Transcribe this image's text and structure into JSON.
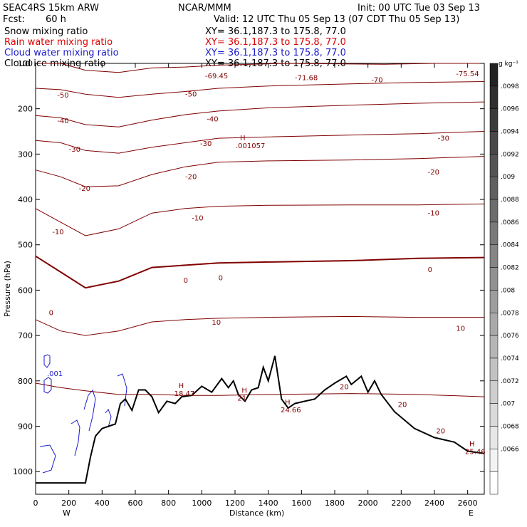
{
  "header": {
    "model": "SEAC4RS 15km ARW",
    "center": "NCAR/MMM",
    "init": "Init: 00 UTC Tue 03 Sep 13",
    "fcst_label": "Fcst:",
    "fcst_value": "60 h",
    "valid": "Valid: 12 UTC Thu 05 Sep 13 (07 CDT Thu 05 Sep 13)"
  },
  "fields": [
    {
      "name": "Snow mixing ratio",
      "xy": "XY=  36.1,187.3 to 175.8, 77.0",
      "color": "#000000"
    },
    {
      "name": "Rain water mixing ratio",
      "xy": "XY=  36.1,187.3 to 175.8, 77.0",
      "color": "#dd0000"
    },
    {
      "name": "Cloud water mixing ratio",
      "xy": "XY=  36.1,187.3 to 175.8, 77.0",
      "color": "#1a1acc"
    },
    {
      "name": "Cloud ice mixing ratio",
      "xy": "XY=  36.1,187.3 to 175.8, 77.0",
      "color": "#000000"
    }
  ],
  "chart_data": {
    "type": "contour-cross-section",
    "xlabel": "Distance (km)",
    "ylabel": "Pressure (hPa)",
    "xlim": [
      0,
      2700
    ],
    "ylim": [
      1050,
      100
    ],
    "x_ticks": [
      "0",
      "200",
      "400",
      "600",
      "800",
      "1000",
      "1200",
      "1400",
      "1600",
      "1800",
      "2000",
      "2200",
      "2400",
      "2600"
    ],
    "y_ticks": [
      "100",
      "200",
      "300",
      "400",
      "500",
      "600",
      "700",
      "800",
      "900",
      "1000"
    ],
    "west_label": "W",
    "east_label": "E",
    "temperature_contours": [
      {
        "level": -60,
        "points": [
          [
            0,
            100
          ],
          [
            150,
            100
          ],
          [
            300,
            115
          ],
          [
            500,
            120
          ],
          [
            700,
            110
          ],
          [
            900,
            108
          ],
          [
            1100,
            104
          ],
          [
            1500,
            100
          ],
          [
            2100,
            102
          ],
          [
            2400,
            100
          ],
          [
            2700,
            100
          ]
        ]
      },
      {
        "level": -50,
        "points": [
          [
            0,
            155
          ],
          [
            150,
            158
          ],
          [
            300,
            168
          ],
          [
            500,
            175
          ],
          [
            700,
            168
          ],
          [
            900,
            162
          ],
          [
            1100,
            155
          ],
          [
            1400,
            150
          ],
          [
            1900,
            145
          ],
          [
            2300,
            142
          ],
          [
            2700,
            140
          ]
        ]
      },
      {
        "level": -40,
        "points": [
          [
            0,
            215
          ],
          [
            150,
            220
          ],
          [
            300,
            235
          ],
          [
            500,
            240
          ],
          [
            700,
            225
          ],
          [
            900,
            213
          ],
          [
            1100,
            205
          ],
          [
            1400,
            198
          ],
          [
            1900,
            192
          ],
          [
            2300,
            188
          ],
          [
            2700,
            185
          ]
        ]
      },
      {
        "level": -30,
        "points": [
          [
            0,
            270
          ],
          [
            150,
            275
          ],
          [
            300,
            292
          ],
          [
            500,
            298
          ],
          [
            700,
            285
          ],
          [
            900,
            275
          ],
          [
            1100,
            265
          ],
          [
            1400,
            262
          ],
          [
            1900,
            258
          ],
          [
            2300,
            255
          ],
          [
            2700,
            250
          ]
        ]
      },
      {
        "level": -20,
        "points": [
          [
            0,
            335
          ],
          [
            150,
            350
          ],
          [
            300,
            372
          ],
          [
            500,
            370
          ],
          [
            700,
            345
          ],
          [
            900,
            328
          ],
          [
            1100,
            318
          ],
          [
            1400,
            315
          ],
          [
            1900,
            313
          ],
          [
            2300,
            310
          ],
          [
            2700,
            305
          ]
        ]
      },
      {
        "level": -10,
        "points": [
          [
            0,
            420
          ],
          [
            150,
            450
          ],
          [
            300,
            480
          ],
          [
            500,
            465
          ],
          [
            700,
            430
          ],
          [
            900,
            420
          ],
          [
            1100,
            415
          ],
          [
            1400,
            413
          ],
          [
            1900,
            412
          ],
          [
            2300,
            412
          ],
          [
            2700,
            410
          ]
        ]
      },
      {
        "level": 0,
        "points": [
          [
            0,
            525
          ],
          [
            150,
            560
          ],
          [
            300,
            595
          ],
          [
            500,
            580
          ],
          [
            700,
            550
          ],
          [
            900,
            545
          ],
          [
            1100,
            540
          ],
          [
            1400,
            538
          ],
          [
            1900,
            535
          ],
          [
            2300,
            530
          ],
          [
            2700,
            528
          ]
        ]
      },
      {
        "level": 10,
        "points": [
          [
            0,
            665
          ],
          [
            150,
            690
          ],
          [
            300,
            700
          ],
          [
            500,
            690
          ],
          [
            700,
            670
          ],
          [
            900,
            665
          ],
          [
            1100,
            662
          ],
          [
            1400,
            660
          ],
          [
            1900,
            658
          ],
          [
            2300,
            660
          ],
          [
            2700,
            660
          ]
        ]
      },
      {
        "level": 20,
        "points": [
          [
            0,
            805
          ],
          [
            150,
            815
          ],
          [
            300,
            822
          ],
          [
            500,
            830
          ],
          [
            700,
            830
          ],
          [
            900,
            832
          ],
          [
            1100,
            832
          ],
          [
            1400,
            830
          ],
          [
            1900,
            828
          ],
          [
            2300,
            830
          ],
          [
            2700,
            835
          ]
        ]
      }
    ],
    "temperature_labels": [
      {
        "text": "-69.45",
        "x": 1020,
        "y": 133
      },
      {
        "text": "-71.68",
        "x": 1560,
        "y": 137
      },
      {
        "text": "-70",
        "x": 2020,
        "y": 142
      },
      {
        "text": "-75.54",
        "x": 2530,
        "y": 128
      },
      {
        "text": "-50",
        "x": 130,
        "y": 175
      },
      {
        "text": "-50",
        "x": 900,
        "y": 173
      },
      {
        "text": "-40",
        "x": 130,
        "y": 232
      },
      {
        "text": "-40",
        "x": 1030,
        "y": 228
      },
      {
        "text": "-30",
        "x": 200,
        "y": 295
      },
      {
        "text": "-30",
        "x": 990,
        "y": 282
      },
      {
        "text": "-30",
        "x": 2420,
        "y": 270
      },
      {
        "text": "-20",
        "x": 260,
        "y": 381
      },
      {
        "text": "-20",
        "x": 900,
        "y": 355
      },
      {
        "text": "-20",
        "x": 2360,
        "y": 345
      },
      {
        "text": "-10",
        "x": 100,
        "y": 477
      },
      {
        "text": "-10",
        "x": 940,
        "y": 446
      },
      {
        "text": "-10",
        "x": 2360,
        "y": 435
      },
      {
        "text": "0",
        "x": 80,
        "y": 655
      },
      {
        "text": "0",
        "x": 890,
        "y": 584
      },
      {
        "text": "0",
        "x": 1100,
        "y": 578
      },
      {
        "text": "0",
        "x": 2360,
        "y": 560
      },
      {
        "text": "10",
        "x": 1060,
        "y": 676
      },
      {
        "text": "10",
        "x": 2530,
        "y": 690
      },
      {
        "text": "20",
        "x": 1830,
        "y": 818
      },
      {
        "text": "20",
        "x": 2180,
        "y": 858
      },
      {
        "text": "20",
        "x": 2410,
        "y": 916
      }
    ],
    "highs": [
      {
        "text": "H",
        "value": ".001057",
        "x": 1230,
        "y": 285
      },
      {
        "text": "H",
        "value": "18.47",
        "x": 860,
        "y": 832
      },
      {
        "text": "H",
        "value": "21",
        "x": 1240,
        "y": 842
      },
      {
        "text": "H",
        "value": "24.66",
        "x": 1500,
        "y": 868
      },
      {
        "text": "H",
        "value": "25.46",
        "x": 2610,
        "y": 960
      }
    ],
    "terrain": {
      "name": "surface",
      "points": [
        [
          0,
          1025
        ],
        [
          300,
          1025
        ],
        [
          330,
          968
        ],
        [
          360,
          922
        ],
        [
          400,
          905
        ],
        [
          440,
          900
        ],
        [
          480,
          895
        ],
        [
          510,
          850
        ],
        [
          540,
          840
        ],
        [
          580,
          865
        ],
        [
          620,
          820
        ],
        [
          660,
          820
        ],
        [
          700,
          835
        ],
        [
          740,
          870
        ],
        [
          790,
          845
        ],
        [
          840,
          850
        ],
        [
          880,
          835
        ],
        [
          940,
          832
        ],
        [
          1000,
          812
        ],
        [
          1060,
          825
        ],
        [
          1120,
          795
        ],
        [
          1160,
          815
        ],
        [
          1190,
          800
        ],
        [
          1220,
          830
        ],
        [
          1260,
          845
        ],
        [
          1300,
          820
        ],
        [
          1340,
          815
        ],
        [
          1370,
          770
        ],
        [
          1400,
          800
        ],
        [
          1440,
          745
        ],
        [
          1480,
          840
        ],
        [
          1520,
          860
        ],
        [
          1560,
          850
        ],
        [
          1620,
          845
        ],
        [
          1680,
          840
        ],
        [
          1740,
          820
        ],
        [
          1800,
          805
        ],
        [
          1870,
          790
        ],
        [
          1900,
          808
        ],
        [
          1960,
          790
        ],
        [
          2000,
          825
        ],
        [
          2040,
          800
        ],
        [
          2080,
          830
        ],
        [
          2160,
          868
        ],
        [
          2280,
          905
        ],
        [
          2400,
          925
        ],
        [
          2520,
          935
        ],
        [
          2600,
          955
        ],
        [
          2700,
          960
        ]
      ]
    },
    "cloud_water": {
      "name": "Cloud water mixing ratio",
      "contour_label": ".001"
    },
    "colorbar": {
      "unit": "g kg⁻¹",
      "labels": [
        ".0098",
        ".0096",
        ".0094",
        ".0092",
        ".009",
        ".0088",
        ".0086",
        ".0084",
        ".0082",
        ".008",
        ".0078",
        ".0076",
        ".0074",
        ".0072",
        ".007",
        ".0068",
        ".0066"
      ]
    }
  }
}
